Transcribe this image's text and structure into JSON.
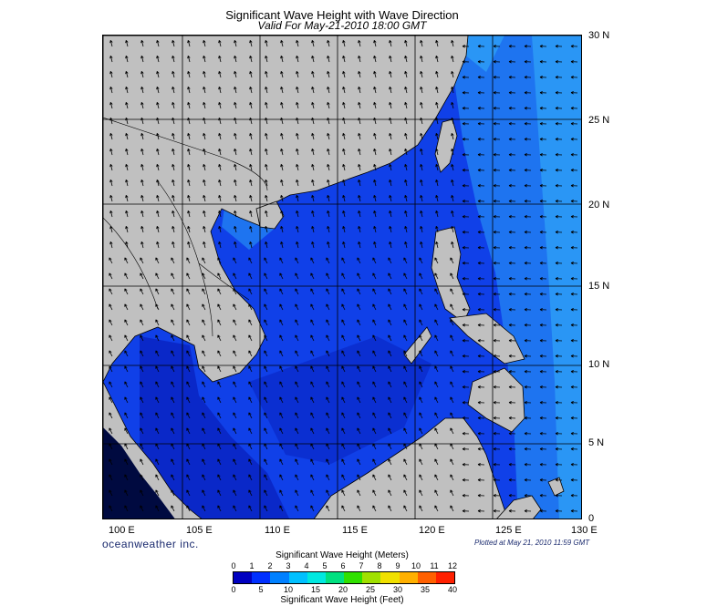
{
  "title": "Significant Wave Height with Wave Direction",
  "subtitle": "Valid For May-21-2010 18:00 GMT",
  "lat_labels": [
    "30 N",
    "25 N",
    "20 N",
    "15 N",
    "10 N",
    "5 N",
    "0"
  ],
  "lon_labels": [
    "100 E",
    "105 E",
    "110 E",
    "115 E",
    "120 E",
    "125 E",
    "130 E"
  ],
  "brand": "oceanweather inc.",
  "plotted": "Plotted at May 21, 2010 11:59 GMT",
  "legend": {
    "meters_title": "Significant Wave Height (Meters)",
    "meters_ticks": [
      "0",
      "1",
      "2",
      "3",
      "4",
      "5",
      "6",
      "7",
      "8",
      "9",
      "10",
      "11",
      "12"
    ],
    "feet_title": "Significant Wave Height (Feet)",
    "feet_ticks": [
      "0",
      "5",
      "10",
      "15",
      "20",
      "25",
      "30",
      "35",
      "40"
    ],
    "colors": [
      "#0000c0",
      "#0030ff",
      "#0080ff",
      "#00c0ff",
      "#00e8e0",
      "#00e080",
      "#30e000",
      "#a0e000",
      "#f0e000",
      "#ffb000",
      "#ff6000",
      "#ff2000"
    ]
  },
  "colors": {
    "land": "#c0c0c0",
    "sea_main": "#1040e8",
    "sea_deep": "#0a28c8",
    "sea_east": "#1e74f0",
    "sea_far": "#2a96f5",
    "gulf_dark": "#000a40",
    "arrow": "#000000"
  }
}
